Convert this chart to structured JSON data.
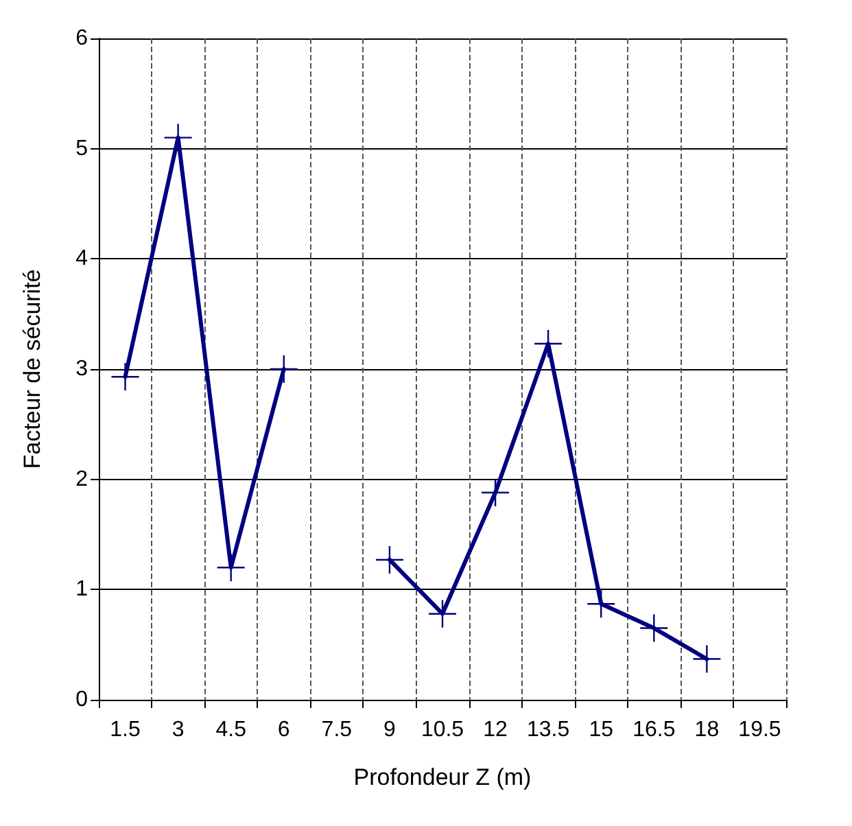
{
  "chart_data": {
    "type": "line",
    "xlabel": "Profondeur Z (m)",
    "ylabel": "Facteur de sécurité",
    "categories": [
      "1.5",
      "3",
      "4.5",
      "6",
      "7.5",
      "9",
      "10.5",
      "12",
      "13.5",
      "15",
      "16.5",
      "18",
      "19.5"
    ],
    "series": [
      {
        "color": "#000080",
        "values": [
          2.93,
          5.1,
          1.2,
          3.0,
          null,
          1.27,
          0.78,
          1.88,
          3.23,
          0.87,
          0.65,
          0.37,
          null
        ]
      }
    ],
    "ylim": [
      0,
      6
    ],
    "yticks": [
      0,
      1,
      2,
      3,
      4,
      5,
      6
    ],
    "grid": true,
    "marker": "cross",
    "line_style": "solid"
  }
}
